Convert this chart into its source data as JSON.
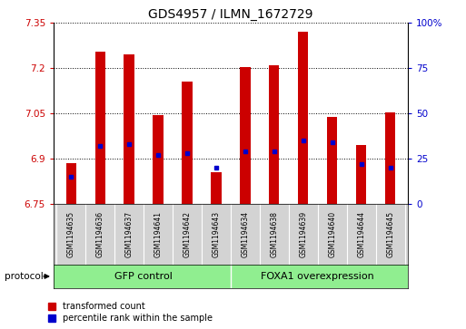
{
  "title": "GDS4957 / ILMN_1672729",
  "samples": [
    "GSM1194635",
    "GSM1194636",
    "GSM1194637",
    "GSM1194641",
    "GSM1194642",
    "GSM1194643",
    "GSM1194634",
    "GSM1194638",
    "GSM1194639",
    "GSM1194640",
    "GSM1194644",
    "GSM1194645"
  ],
  "transformed_count": [
    6.885,
    7.255,
    7.245,
    7.045,
    7.155,
    6.855,
    7.205,
    7.21,
    7.32,
    7.04,
    6.945,
    7.055
  ],
  "percentile_rank": [
    15,
    32,
    33,
    27,
    28,
    20,
    29,
    29,
    35,
    34,
    22,
    20
  ],
  "ylim_left": [
    6.75,
    7.35
  ],
  "ylim_right": [
    0,
    100
  ],
  "yticks_left": [
    6.75,
    6.9,
    7.05,
    7.2,
    7.35
  ],
  "yticks_right": [
    0,
    25,
    50,
    75,
    100
  ],
  "ytick_labels_left": [
    "6.75",
    "6.9",
    "7.05",
    "7.2",
    "7.35"
  ],
  "ytick_labels_right": [
    "0",
    "25",
    "50",
    "75",
    "100%"
  ],
  "bar_color": "#cc0000",
  "percentile_color": "#0000cc",
  "bar_width": 0.35,
  "group1_label": "GFP control",
  "group2_label": "FOXA1 overexpression",
  "group_color": "#90ee90",
  "protocol_label": "protocol",
  "legend_tc": "transformed count",
  "legend_pr": "percentile rank within the sample",
  "bg_color": "#ffffff",
  "plot_bg": "#ffffff",
  "title_fontsize": 10,
  "tick_label_fontsize": 7.5,
  "sample_fontsize": 5.5,
  "group_fontsize": 8,
  "legend_fontsize": 7,
  "ybase": 6.75
}
